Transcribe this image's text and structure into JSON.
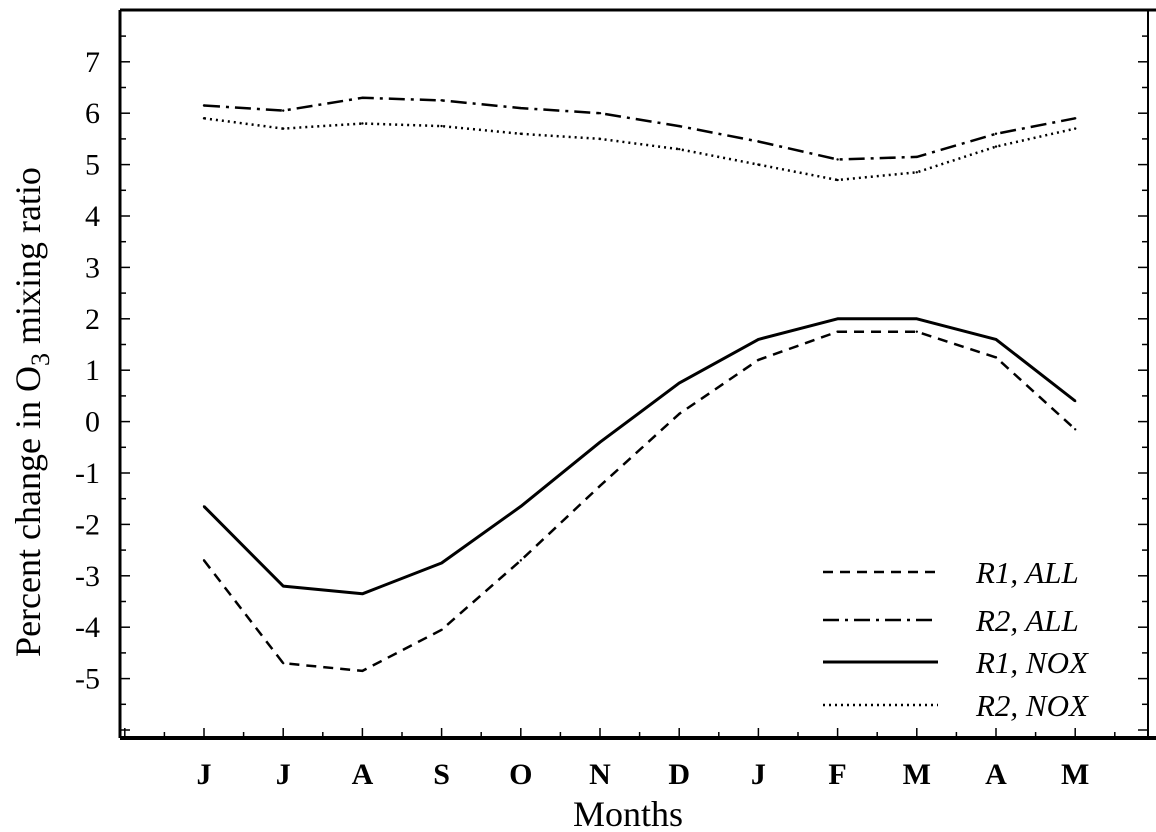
{
  "chart_data": {
    "type": "line",
    "xlabel": "Months",
    "ylabel_main": "Percent change in O",
    "ylabel_subscript": "3",
    "ylabel_tail": " mixing ratio",
    "categories": [
      "J",
      "J",
      "A",
      "S",
      "O",
      "N",
      "D",
      "J",
      "F",
      "M",
      "A",
      "M"
    ],
    "ylim": [
      -6,
      8
    ],
    "yticks": [
      -5,
      -4,
      -3,
      -2,
      -1,
      0,
      1,
      2,
      3,
      4,
      5,
      6,
      7
    ],
    "ytick_labels": [
      "-5",
      "-4",
      "-3",
      "-2",
      "-1",
      "0",
      "1",
      "2",
      "3",
      "4",
      "5",
      "6",
      "7"
    ],
    "grid": false,
    "legend_position": "bottom-right",
    "series": [
      {
        "name": "R1, ALL",
        "style": "dashed",
        "values": [
          -2.7,
          -4.7,
          -4.85,
          -4.05,
          -2.7,
          -1.25,
          0.15,
          1.2,
          1.75,
          1.75,
          1.25,
          -0.15
        ]
      },
      {
        "name": "R2, ALL",
        "style": "dashdot",
        "values": [
          6.15,
          6.05,
          6.3,
          6.25,
          6.1,
          6.0,
          5.75,
          5.45,
          5.1,
          5.15,
          5.6,
          5.9
        ]
      },
      {
        "name": "R1, NOX",
        "style": "solid",
        "values": [
          -1.65,
          -3.2,
          -3.35,
          -2.75,
          -1.65,
          -0.4,
          0.75,
          1.6,
          2.0,
          2.0,
          1.6,
          0.4
        ]
      },
      {
        "name": "R2, NOX",
        "style": "dotted",
        "values": [
          5.9,
          5.7,
          5.8,
          5.75,
          5.6,
          5.5,
          5.3,
          5.0,
          4.7,
          4.85,
          5.35,
          5.7
        ]
      }
    ]
  }
}
